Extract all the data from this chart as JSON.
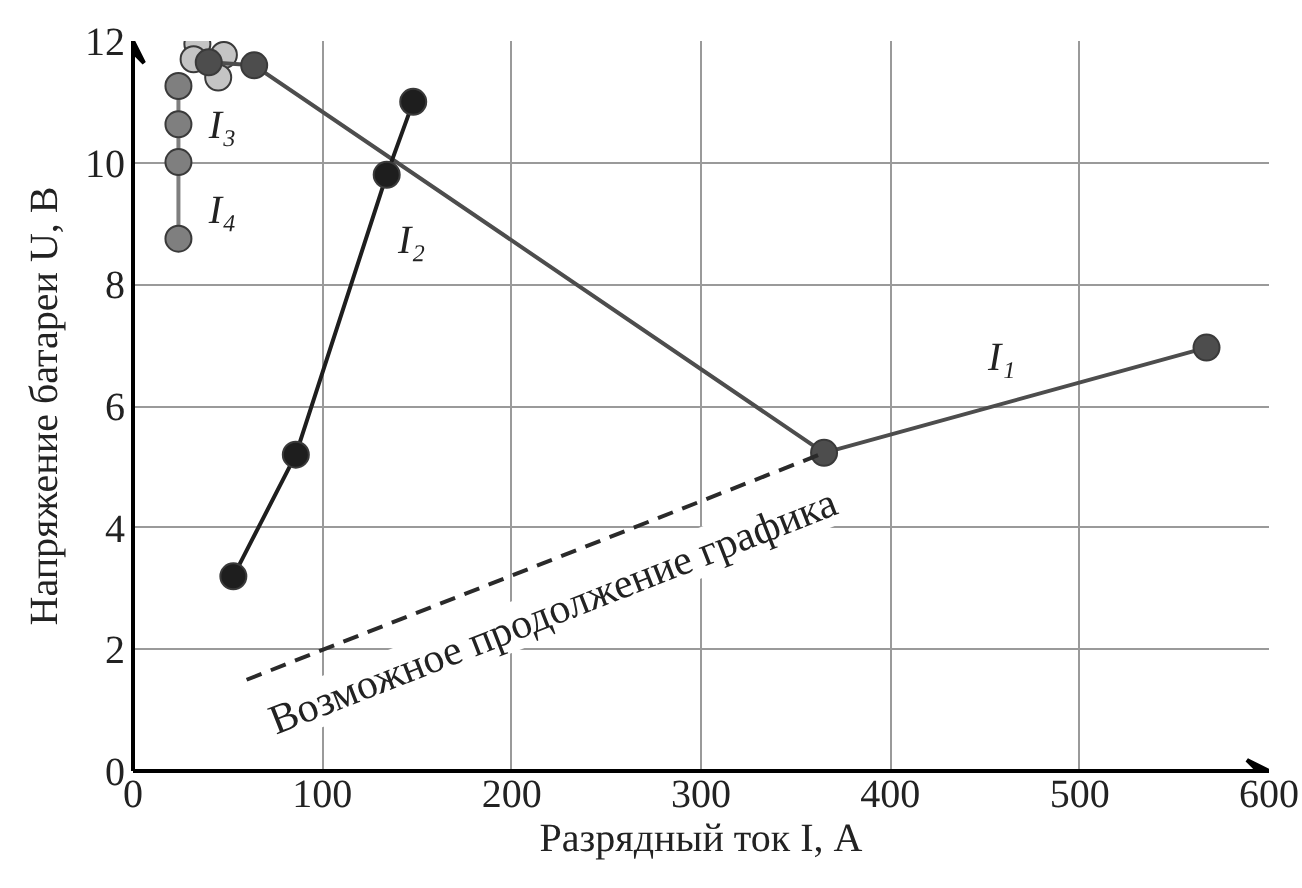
{
  "chart_data": {
    "type": "line",
    "xlabel": "Разрядный ток I, А",
    "ylabel": "Напряжение батареи U, В",
    "xlim": [
      0,
      600
    ],
    "ylim": [
      0,
      12
    ],
    "xticks": [
      0,
      100,
      200,
      300,
      400,
      500,
      600
    ],
    "yticks": [
      0,
      2,
      4,
      6,
      8,
      10,
      12
    ],
    "grid": true,
    "marker": "circle",
    "series": [
      {
        "type": "scatter",
        "color": "#c4c4c4",
        "x": [
          34,
          32,
          48,
          45
        ],
        "values": [
          11.95,
          11.7,
          11.77,
          11.4
        ]
      },
      {
        "color": "#4d4d4d",
        "x": [
          40,
          64,
          365,
          567
        ],
        "values": [
          11.65,
          11.6,
          5.23,
          6.96
        ]
      },
      {
        "color": "#1e1e1e",
        "x": [
          53,
          86,
          134,
          148
        ],
        "values": [
          3.2,
          5.2,
          9.8,
          11.0
        ]
      },
      {
        "color": "#7f7f7f",
        "x": [
          24,
          24,
          24,
          24
        ],
        "values": [
          11.26,
          10.63,
          10.01,
          8.75
        ]
      },
      {
        "name": "Возможное продолжение графика",
        "color": "#2a2a2a",
        "line_style": "dashed",
        "marker": "none",
        "x": [
          60,
          365
        ],
        "values": [
          1.5,
          5.23
        ]
      }
    ],
    "annotations": [
      {
        "text": "I₁",
        "x": 465,
        "y": 6.09
      },
      {
        "text": "I₂",
        "x": 125,
        "y": 8.94
      },
      {
        "text": "I₃",
        "x": 24,
        "y": 10.6
      },
      {
        "text": "I₄",
        "x": 24,
        "y": 9.2
      }
    ]
  }
}
